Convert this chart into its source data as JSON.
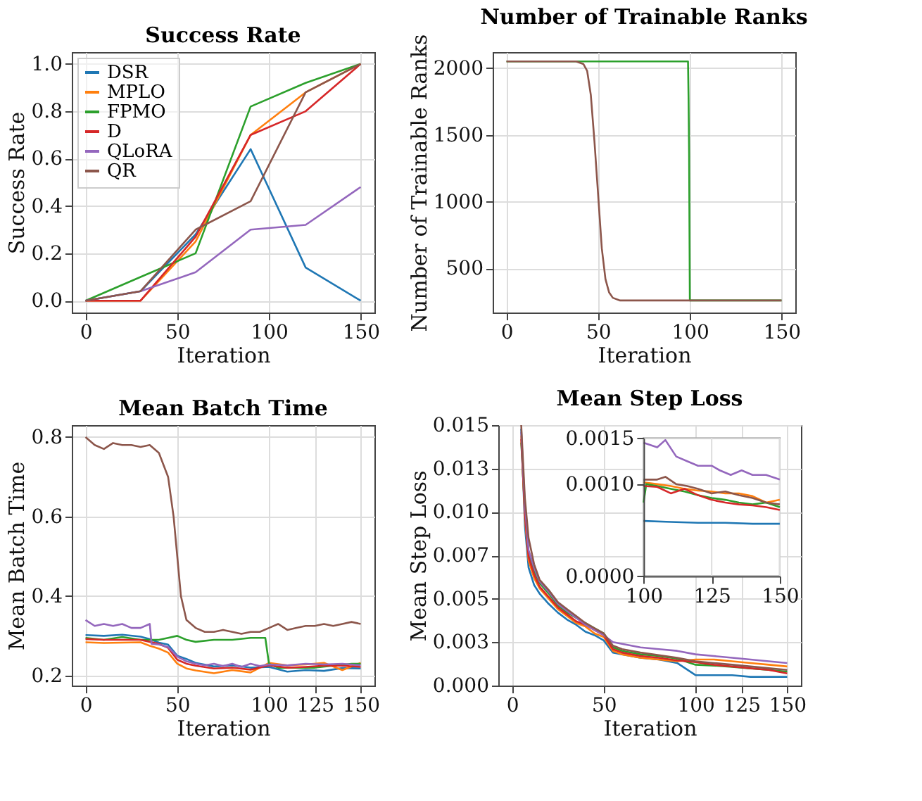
{
  "chart_data": [
    {
      "type": "line",
      "title": "Success Rate",
      "xlabel": "Iteration",
      "ylabel": "Success Rate",
      "xlim": [
        -7.5,
        157.5
      ],
      "ylim": [
        -0.05,
        1.05
      ],
      "xticks": [
        0,
        50,
        100,
        150
      ],
      "yticks": [
        {
          "value": 0,
          "label": "0.0"
        },
        0.2,
        0.4,
        0.6,
        0.8,
        {
          "value": 1,
          "label": "1.0"
        }
      ],
      "grid": true,
      "legend": "top left",
      "x": [
        0,
        30,
        60,
        90,
        120,
        150
      ],
      "series": [
        {
          "name": "DSR",
          "color": "#1f77b4",
          "values": [
            0,
            0.04,
            0.28,
            0.64,
            0.14,
            0
          ]
        },
        {
          "name": "MPLO",
          "color": "#ff7f0e",
          "values": [
            0,
            0,
            0.25,
            0.7,
            0.88,
            1.0
          ]
        },
        {
          "name": "FPMO",
          "color": "#2ca02c",
          "values": [
            0,
            0.1,
            0.2,
            0.82,
            0.92,
            1.0
          ]
        },
        {
          "name": "D",
          "color": "#d62728",
          "values": [
            0,
            0,
            0.27,
            0.7,
            0.8,
            1.0
          ]
        },
        {
          "name": "QLoRA",
          "color": "#9467bd",
          "values": [
            0,
            0.04,
            0.12,
            0.3,
            0.32,
            0.48
          ]
        },
        {
          "name": "QR",
          "color": "#8c564b",
          "values": [
            0,
            0.04,
            0.3,
            0.42,
            0.88,
            1.0
          ]
        }
      ]
    },
    {
      "type": "line",
      "title": "Number of Trainable Ranks",
      "xlabel": "Iteration",
      "ylabel": "Number of Trainable Ranks",
      "xlim": [
        -7.5,
        157.5
      ],
      "ylim": [
        170,
        2120
      ],
      "xticks": [
        0,
        50,
        100,
        150
      ],
      "yticks": [
        500,
        1000,
        1500,
        2000
      ],
      "grid": true,
      "series": [
        {
          "color": "#2ca02c",
          "x": [
            0,
            99,
            99.3,
            99.6,
            100,
            150
          ],
          "values": [
            2050,
            2050,
            1770,
            1350,
            260,
            260
          ]
        },
        {
          "color": "#8c564b",
          "x": [
            0,
            38,
            42,
            44,
            46,
            48,
            50,
            52,
            54,
            56,
            58,
            62,
            66,
            150
          ],
          "values": [
            2050,
            2050,
            2030,
            1980,
            1800,
            1450,
            1050,
            650,
            420,
            320,
            280,
            260,
            260,
            260
          ]
        }
      ]
    },
    {
      "type": "line",
      "title": "Mean Batch Time",
      "xlabel": "Iteration",
      "ylabel": "Mean Batch Time",
      "xlim": [
        -7.5,
        157.5
      ],
      "ylim": [
        0.175,
        0.83
      ],
      "xticks": [
        0,
        50,
        100,
        125,
        150
      ],
      "yticks": [
        0.2,
        0.4,
        0.6,
        0.8
      ],
      "grid": true,
      "series": [
        {
          "color": "#1f77b4",
          "x": [
            0,
            10,
            20,
            30,
            35,
            40,
            45,
            50,
            55,
            60,
            70,
            80,
            90,
            100,
            110,
            120,
            130,
            140,
            150
          ],
          "values": [
            0.302,
            0.3,
            0.303,
            0.298,
            0.292,
            0.283,
            0.278,
            0.25,
            0.242,
            0.232,
            0.223,
            0.226,
            0.22,
            0.222,
            0.21,
            0.214,
            0.212,
            0.219,
            0.218
          ]
        },
        {
          "color": "#ff7f0e",
          "x": [
            0,
            10,
            20,
            30,
            35,
            40,
            45,
            50,
            55,
            60,
            70,
            80,
            90,
            100,
            110,
            120,
            130,
            140,
            150
          ],
          "values": [
            0.284,
            0.282,
            0.283,
            0.284,
            0.275,
            0.268,
            0.258,
            0.23,
            0.218,
            0.213,
            0.206,
            0.214,
            0.208,
            0.232,
            0.226,
            0.228,
            0.232,
            0.214,
            0.232
          ]
        },
        {
          "color": "#2ca02c",
          "x": [
            0,
            10,
            20,
            30,
            40,
            45,
            50,
            55,
            60,
            70,
            80,
            90,
            98,
            100,
            105,
            115,
            125,
            135,
            145,
            150
          ],
          "values": [
            0.295,
            0.29,
            0.297,
            0.29,
            0.29,
            0.295,
            0.3,
            0.29,
            0.285,
            0.29,
            0.29,
            0.295,
            0.295,
            0.23,
            0.22,
            0.22,
            0.22,
            0.225,
            0.23,
            0.23
          ]
        },
        {
          "color": "#d62728",
          "x": [
            0,
            10,
            20,
            30,
            35,
            40,
            45,
            50,
            55,
            60,
            70,
            80,
            90,
            100,
            110,
            120,
            130,
            140,
            150
          ],
          "values": [
            0.292,
            0.29,
            0.29,
            0.29,
            0.285,
            0.28,
            0.27,
            0.24,
            0.23,
            0.225,
            0.218,
            0.22,
            0.215,
            0.226,
            0.22,
            0.222,
            0.225,
            0.225,
            0.222
          ]
        },
        {
          "color": "#9467bd",
          "x": [
            0,
            5,
            10,
            15,
            20,
            25,
            30,
            35,
            36,
            40,
            45,
            50,
            55,
            60,
            65,
            70,
            75,
            80,
            85,
            90,
            95,
            100,
            110,
            120,
            130,
            140,
            150
          ],
          "values": [
            0.34,
            0.325,
            0.33,
            0.325,
            0.33,
            0.32,
            0.32,
            0.33,
            0.28,
            0.278,
            0.272,
            0.248,
            0.236,
            0.23,
            0.226,
            0.23,
            0.224,
            0.23,
            0.222,
            0.23,
            0.224,
            0.228,
            0.226,
            0.23,
            0.228,
            0.23,
            0.226
          ]
        },
        {
          "color": "#8c564b",
          "x": [
            0,
            5,
            10,
            15,
            20,
            25,
            30,
            35,
            40,
            45,
            48,
            50,
            52,
            55,
            60,
            65,
            70,
            75,
            80,
            85,
            90,
            95,
            100,
            105,
            110,
            115,
            120,
            125,
            130,
            135,
            140,
            145,
            150
          ],
          "values": [
            0.8,
            0.78,
            0.77,
            0.785,
            0.78,
            0.78,
            0.775,
            0.78,
            0.76,
            0.7,
            0.6,
            0.5,
            0.4,
            0.34,
            0.32,
            0.31,
            0.31,
            0.315,
            0.31,
            0.305,
            0.31,
            0.31,
            0.32,
            0.33,
            0.315,
            0.32,
            0.325,
            0.325,
            0.33,
            0.325,
            0.33,
            0.335,
            0.33
          ]
        }
      ]
    },
    {
      "type": "line",
      "title": "Mean Step Loss",
      "xlabel": "Iteration",
      "ylabel": "Mean Step Loss",
      "xlim": [
        -7.5,
        157.5
      ],
      "ylim": [
        0,
        0.015
      ],
      "xticks": [
        0,
        50,
        100,
        125,
        150
      ],
      "yticks": [
        {
          "value": 0,
          "label": "0.000"
        },
        {
          "value": 0.0025,
          "label": "0.003"
        },
        {
          "value": 0.005,
          "label": "0.005"
        },
        {
          "value": 0.0075,
          "label": "0.007"
        },
        {
          "value": 0.01,
          "label": "0.010"
        },
        {
          "value": 0.0125,
          "label": "0.013"
        },
        {
          "value": 0.015,
          "label": "0.015"
        }
      ],
      "grid": true,
      "x": [
        5,
        7,
        9,
        12,
        15,
        20,
        25,
        30,
        35,
        40,
        45,
        50,
        55,
        60,
        70,
        80,
        90,
        100,
        110,
        120,
        130,
        140,
        150
      ],
      "series": [
        {
          "color": "#1f77b4",
          "values": [
            0.0148,
            0.0092,
            0.0068,
            0.0058,
            0.0053,
            0.0047,
            0.0042,
            0.0038,
            0.0035,
            0.0031,
            0.0029,
            0.0026,
            0.0019,
            0.0018,
            0.0016,
            0.0015,
            0.0013,
            0.0006,
            0.0006,
            0.0006,
            0.0005,
            0.0005,
            0.0005
          ]
        },
        {
          "color": "#ff7f0e",
          "values": [
            0.0144,
            0.0097,
            0.0072,
            0.0062,
            0.0056,
            0.005,
            0.0044,
            0.004,
            0.0036,
            0.0034,
            0.003,
            0.0028,
            0.002,
            0.0018,
            0.0016,
            0.0015,
            0.0014,
            0.0015,
            0.0015,
            0.0014,
            0.0013,
            0.0012,
            0.0011
          ]
        },
        {
          "color": "#2ca02c",
          "values": [
            0.014,
            0.0101,
            0.0076,
            0.0066,
            0.0059,
            0.0053,
            0.0046,
            0.0042,
            0.0039,
            0.0036,
            0.0033,
            0.003,
            0.0022,
            0.002,
            0.0018,
            0.0017,
            0.00155,
            0.0012,
            0.00115,
            0.00108,
            0.00098,
            0.0009,
            0.0008
          ]
        },
        {
          "color": "#d62728",
          "values": [
            0.0142,
            0.0099,
            0.0074,
            0.0064,
            0.0057,
            0.0051,
            0.0045,
            0.0041,
            0.0037,
            0.0035,
            0.0032,
            0.0029,
            0.0021,
            0.0019,
            0.0017,
            0.0016,
            0.00145,
            0.00135,
            0.0012,
            0.0011,
            0.001,
            0.0009,
            0.0007
          ]
        },
        {
          "color": "#9467bd",
          "values": [
            0.0146,
            0.0104,
            0.0078,
            0.0068,
            0.006,
            0.0054,
            0.0047,
            0.0043,
            0.0039,
            0.0035,
            0.0032,
            0.0029,
            0.0025,
            0.0024,
            0.0022,
            0.0021,
            0.002,
            0.0018,
            0.0017,
            0.0016,
            0.0015,
            0.0014,
            0.0013
          ]
        },
        {
          "color": "#8c564b",
          "values": [
            0.015,
            0.0108,
            0.0085,
            0.007,
            0.0061,
            0.0055,
            0.0048,
            0.0044,
            0.004,
            0.0036,
            0.0033,
            0.003,
            0.0023,
            0.0021,
            0.0019,
            0.00175,
            0.0016,
            0.0014,
            0.0013,
            0.0012,
            0.0011,
            0.001,
            0.0009
          ]
        }
      ]
    },
    {
      "type": "line",
      "xlim": [
        100,
        150
      ],
      "ylim": [
        0,
        0.0015
      ],
      "xticks": [
        100,
        125,
        150
      ],
      "yticks": [
        {
          "value": 0,
          "label": "0.0000"
        },
        {
          "value": 0.001,
          "label": "0.0010"
        },
        {
          "value": 0.0015,
          "label": "0.0015"
        }
      ],
      "grid": true,
      "series": [
        {
          "color": "#1f77b4",
          "x": [
            100,
            110,
            120,
            130,
            140,
            150
          ],
          "values": [
            0.0006,
            0.00059,
            0.00058,
            0.00058,
            0.00057,
            0.00057
          ]
        },
        {
          "color": "#ff7f0e",
          "x": [
            100,
            105,
            110,
            115,
            120,
            125,
            130,
            135,
            140,
            145,
            150
          ],
          "values": [
            0.00102,
            0.001,
            0.00098,
            0.00095,
            0.00093,
            0.00092,
            0.0009,
            0.0009,
            0.00087,
            0.0008,
            0.00083
          ]
        },
        {
          "color": "#2ca02c",
          "x": [
            100,
            101,
            105,
            110,
            115,
            120,
            125,
            130,
            135,
            140,
            145,
            150
          ],
          "values": [
            0.0008,
            0.001,
            0.00098,
            0.00095,
            0.00092,
            0.00088,
            0.00085,
            0.00083,
            0.0008,
            0.00078,
            0.0008,
            0.00075
          ]
        },
        {
          "color": "#d62728",
          "x": [
            100,
            105,
            110,
            115,
            120,
            125,
            130,
            135,
            140,
            145,
            150
          ],
          "values": [
            0.00098,
            0.00097,
            0.0009,
            0.00095,
            0.00088,
            0.00083,
            0.0008,
            0.00078,
            0.00077,
            0.00075,
            0.00072
          ]
        },
        {
          "color": "#9467bd",
          "x": [
            100,
            105,
            108,
            112,
            116,
            120,
            125,
            128,
            132,
            136,
            140,
            145,
            150
          ],
          "values": [
            0.00145,
            0.0014,
            0.00148,
            0.0013,
            0.00125,
            0.0012,
            0.0012,
            0.00115,
            0.0011,
            0.00115,
            0.0011,
            0.0011,
            0.00105
          ]
        },
        {
          "color": "#8c564b",
          "x": [
            100,
            105,
            108,
            112,
            116,
            120,
            125,
            130,
            135,
            140,
            145,
            150
          ],
          "values": [
            0.00105,
            0.00105,
            0.00108,
            0.001,
            0.00098,
            0.00095,
            0.0009,
            0.00092,
            0.00088,
            0.00085,
            0.0008,
            0.00078
          ]
        }
      ]
    }
  ]
}
